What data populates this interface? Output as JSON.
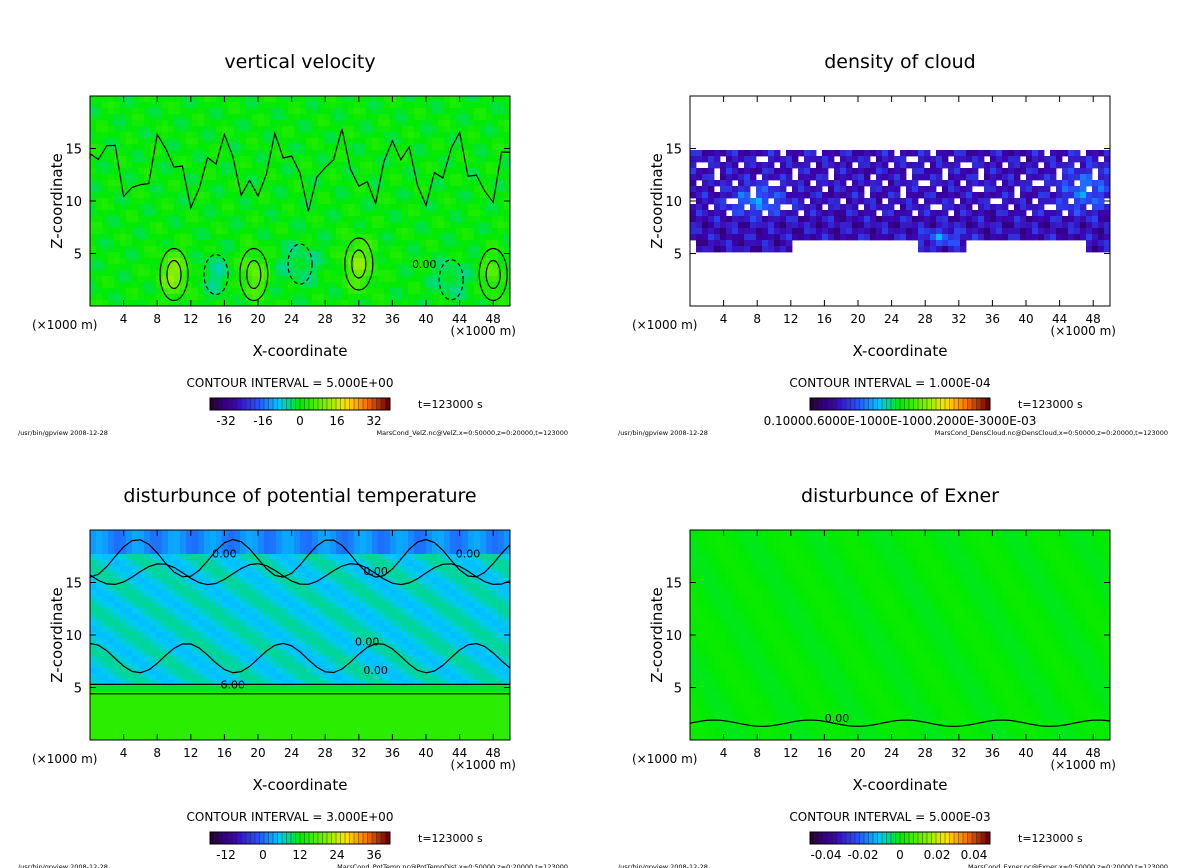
{
  "chart_data": [
    {
      "type": "heatmap",
      "title": "vertical velocity",
      "xlabel": "X-coordinate",
      "ylabel": "Z-coordinate",
      "x_unit_left": "(×1000 m)",
      "x_unit_right": "(×1000 m)",
      "xlim": [
        0,
        50
      ],
      "ylim": [
        0,
        20
      ],
      "x_ticks": [
        4,
        8,
        12,
        16,
        20,
        24,
        28,
        32,
        36,
        40,
        44,
        48
      ],
      "y_ticks": [
        5,
        10,
        15
      ],
      "contour_interval_label": "CONTOUR INTERVAL = 5.000E+00",
      "colorbar_ticks": [
        "-32",
        "-16",
        "0",
        "16",
        "32"
      ],
      "time_label": "t=123000 s",
      "footer_left": "/usr/bin/gpview  2008-12-28",
      "footer_right": "MarsCond_VelZ.nc@VelZ,x=0:50000,z=0:20000,t=123000",
      "contour_labels": [
        {
          "x": 39.8,
          "z": 3.6,
          "text": "0.00"
        }
      ],
      "field": "wvel"
    },
    {
      "type": "heatmap",
      "title": "density of cloud",
      "xlabel": "X-coordinate",
      "ylabel": "Z-coordinate",
      "x_unit_left": "(×1000 m)",
      "x_unit_right": "(×1000 m)",
      "xlim": [
        0,
        50
      ],
      "ylim": [
        0,
        20
      ],
      "x_ticks": [
        4,
        8,
        12,
        16,
        20,
        24,
        28,
        32,
        36,
        40,
        44,
        48
      ],
      "y_ticks": [
        5,
        10,
        15
      ],
      "contour_interval_label": "CONTOUR INTERVAL = 1.000E-04",
      "colorbar_ticks": [
        "0.10000.6000E-1000E-1000.2000E-3000E-03"
      ],
      "time_label": "t=123000 s",
      "footer_left": "/usr/bin/gpview  2008-12-28",
      "footer_right": "MarsCond_DensCloud.nc@DensCloud,x=0:50000,z=0:20000,t=123000",
      "contour_labels": [],
      "field": "cloud"
    },
    {
      "type": "heatmap",
      "title": "disturbunce of potential temperature",
      "xlabel": "X-coordinate",
      "ylabel": "Z-coordinate",
      "x_unit_left": "(×1000 m)",
      "x_unit_right": "(×1000 m)",
      "xlim": [
        0,
        50
      ],
      "ylim": [
        0,
        20
      ],
      "x_ticks": [
        4,
        8,
        12,
        16,
        20,
        24,
        28,
        32,
        36,
        40,
        44,
        48
      ],
      "y_ticks": [
        5,
        10,
        15
      ],
      "contour_interval_label": "CONTOUR INTERVAL = 3.000E+00",
      "colorbar_ticks": [
        "-12",
        "0",
        "12",
        "24",
        "36"
      ],
      "time_label": "t=123000 s",
      "footer_left": "/usr/bin/gpview  2008-12-28",
      "footer_right": "MarsCond_PotTemp.nc@PotTempDist,x=0:50000,z=0:20000,t=123000",
      "contour_labels": [
        {
          "x": 16,
          "z": 17.4,
          "text": "0.00"
        },
        {
          "x": 34,
          "z": 15.7,
          "text": "0.00"
        },
        {
          "x": 45,
          "z": 17.4,
          "text": "0.00"
        },
        {
          "x": 33,
          "z": 9.0,
          "text": "0.00"
        },
        {
          "x": 34,
          "z": 6.3,
          "text": "0.00"
        },
        {
          "x": 17,
          "z": 4.9,
          "text": "6.00"
        }
      ],
      "field": "theta"
    },
    {
      "type": "heatmap",
      "title": "disturbunce of Exner",
      "xlabel": "X-coordinate",
      "ylabel": "Z-coordinate",
      "x_unit_left": "(×1000 m)",
      "x_unit_right": "(×1000 m)",
      "xlim": [
        0,
        50
      ],
      "ylim": [
        0,
        20
      ],
      "x_ticks": [
        4,
        8,
        12,
        16,
        20,
        24,
        28,
        32,
        36,
        40,
        44,
        48
      ],
      "y_ticks": [
        5,
        10,
        15
      ],
      "contour_interval_label": "CONTOUR INTERVAL = 5.000E-03",
      "colorbar_ticks": [
        "-0.04",
        "-0.02",
        "0",
        "0.02",
        "0.04"
      ],
      "time_label": "t=123000 s",
      "footer_left": "/usr/bin/gpview  2008-12-28",
      "footer_right": "MarsCond_Exner.nc@Exner,x=0:50000,z=0:20000,t=123000",
      "contour_labels": [
        {
          "x": 17.5,
          "z": 1.7,
          "text": "0.00"
        }
      ],
      "field": "exner"
    }
  ]
}
